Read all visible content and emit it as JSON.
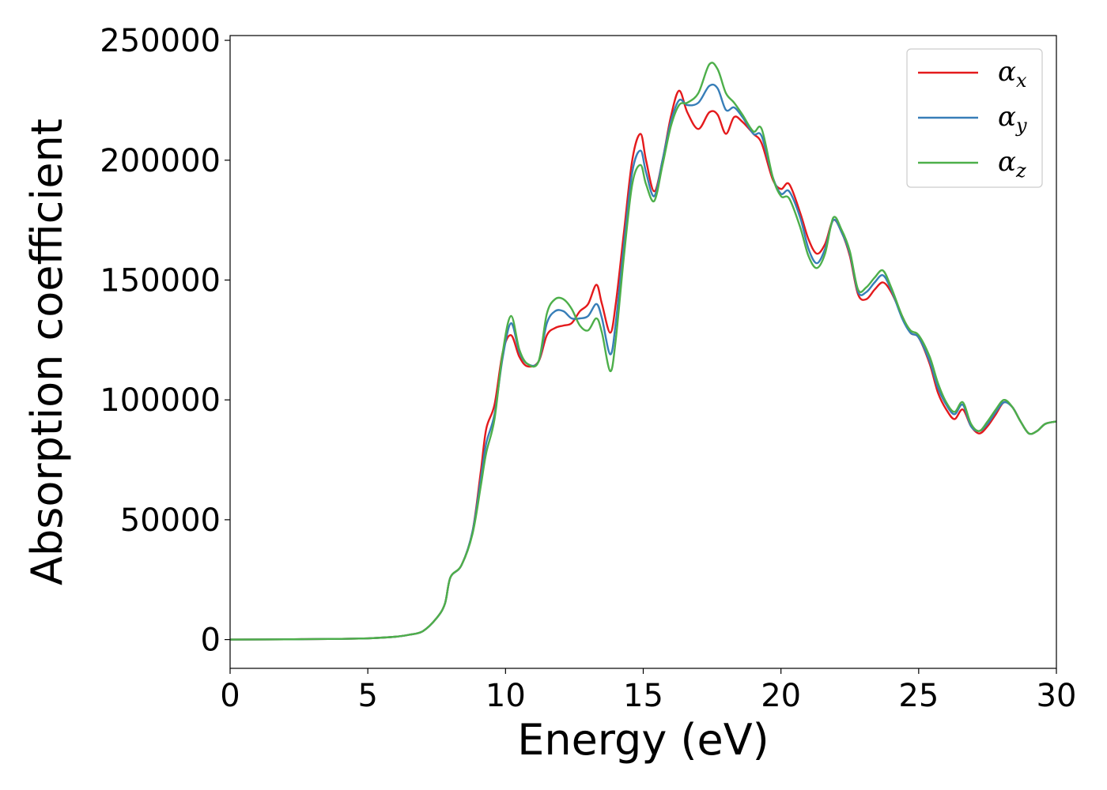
{
  "chart_data": {
    "type": "line",
    "title": "",
    "xlabel": "Energy (eV)",
    "ylabel": "Absorption coefficient",
    "xlim": [
      0,
      30
    ],
    "ylim": [
      -12000,
      252000
    ],
    "xticks": [
      0,
      5,
      10,
      15,
      20,
      25,
      30
    ],
    "yticks": [
      0,
      50000,
      100000,
      150000,
      200000,
      250000
    ],
    "grid": false,
    "legend_position": "top-right",
    "series": [
      {
        "name": "α",
        "subscript": "x",
        "color": "#e41a1c",
        "points": [
          [
            0,
            0
          ],
          [
            2,
            100
          ],
          [
            4,
            300
          ],
          [
            5,
            500
          ],
          [
            6,
            1200
          ],
          [
            6.5,
            2000
          ],
          [
            7,
            3500
          ],
          [
            7.5,
            9000
          ],
          [
            7.8,
            15000
          ],
          [
            8,
            26000
          ],
          [
            8.4,
            31000
          ],
          [
            8.8,
            45000
          ],
          [
            9.1,
            70000
          ],
          [
            9.3,
            88000
          ],
          [
            9.6,
            98000
          ],
          [
            9.9,
            120000
          ],
          [
            10.2,
            127000
          ],
          [
            10.5,
            118000
          ],
          [
            10.8,
            114000
          ],
          [
            11.2,
            116000
          ],
          [
            11.5,
            127000
          ],
          [
            11.8,
            130000
          ],
          [
            12.1,
            131000
          ],
          [
            12.4,
            132000
          ],
          [
            12.7,
            137000
          ],
          [
            13.0,
            140000
          ],
          [
            13.3,
            148000
          ],
          [
            13.5,
            140000
          ],
          [
            13.8,
            128000
          ],
          [
            14.0,
            140000
          ],
          [
            14.3,
            170000
          ],
          [
            14.6,
            200000
          ],
          [
            14.9,
            211000
          ],
          [
            15.1,
            200000
          ],
          [
            15.4,
            187000
          ],
          [
            15.7,
            200000
          ],
          [
            16.0,
            218000
          ],
          [
            16.3,
            229000
          ],
          [
            16.6,
            220000
          ],
          [
            17.0,
            213000
          ],
          [
            17.4,
            220000
          ],
          [
            17.7,
            219000
          ],
          [
            18.0,
            211000
          ],
          [
            18.3,
            218000
          ],
          [
            18.6,
            216000
          ],
          [
            19.0,
            211000
          ],
          [
            19.3,
            207000
          ],
          [
            19.7,
            192000
          ],
          [
            20.0,
            188000
          ],
          [
            20.3,
            190000
          ],
          [
            20.7,
            178000
          ],
          [
            21.0,
            167000
          ],
          [
            21.3,
            161000
          ],
          [
            21.6,
            165000
          ],
          [
            21.9,
            175000
          ],
          [
            22.2,
            170000
          ],
          [
            22.5,
            160000
          ],
          [
            22.8,
            144000
          ],
          [
            23.1,
            142000
          ],
          [
            23.4,
            146000
          ],
          [
            23.7,
            149000
          ],
          [
            24.0,
            145000
          ],
          [
            24.4,
            135000
          ],
          [
            24.7,
            128000
          ],
          [
            25.0,
            126000
          ],
          [
            25.4,
            115000
          ],
          [
            25.7,
            103000
          ],
          [
            26.0,
            96000
          ],
          [
            26.3,
            92000
          ],
          [
            26.6,
            96000
          ],
          [
            26.9,
            89000
          ],
          [
            27.2,
            86000
          ],
          [
            27.5,
            89000
          ],
          [
            27.8,
            94000
          ],
          [
            28.1,
            99000
          ],
          [
            28.4,
            97000
          ],
          [
            28.7,
            91000
          ],
          [
            29.0,
            86000
          ],
          [
            29.3,
            87000
          ],
          [
            29.6,
            90000
          ],
          [
            30,
            91000
          ]
        ]
      },
      {
        "name": "α",
        "subscript": "y",
        "color": "#377eb8",
        "points": [
          [
            0,
            0
          ],
          [
            2,
            100
          ],
          [
            4,
            300
          ],
          [
            5,
            500
          ],
          [
            6,
            1200
          ],
          [
            6.5,
            2000
          ],
          [
            7,
            3500
          ],
          [
            7.5,
            9000
          ],
          [
            7.8,
            15000
          ],
          [
            8,
            26000
          ],
          [
            8.4,
            31000
          ],
          [
            8.8,
            45000
          ],
          [
            9.1,
            67000
          ],
          [
            9.3,
            82000
          ],
          [
            9.6,
            94000
          ],
          [
            9.9,
            118000
          ],
          [
            10.2,
            132000
          ],
          [
            10.5,
            120000
          ],
          [
            10.8,
            115000
          ],
          [
            11.2,
            116000
          ],
          [
            11.5,
            132000
          ],
          [
            11.8,
            137000
          ],
          [
            12.1,
            137000
          ],
          [
            12.4,
            134000
          ],
          [
            12.7,
            134000
          ],
          [
            13.0,
            135000
          ],
          [
            13.3,
            140000
          ],
          [
            13.5,
            134000
          ],
          [
            13.8,
            119000
          ],
          [
            14.0,
            132000
          ],
          [
            14.3,
            165000
          ],
          [
            14.6,
            195000
          ],
          [
            14.9,
            204000
          ],
          [
            15.1,
            195000
          ],
          [
            15.4,
            185000
          ],
          [
            15.7,
            200000
          ],
          [
            16.0,
            216000
          ],
          [
            16.3,
            225000
          ],
          [
            16.6,
            223000
          ],
          [
            17.0,
            224000
          ],
          [
            17.4,
            231000
          ],
          [
            17.7,
            230000
          ],
          [
            18.0,
            221000
          ],
          [
            18.3,
            222000
          ],
          [
            18.6,
            218000
          ],
          [
            19.0,
            211000
          ],
          [
            19.3,
            210000
          ],
          [
            19.7,
            193000
          ],
          [
            20.0,
            186000
          ],
          [
            20.3,
            187000
          ],
          [
            20.7,
            176000
          ],
          [
            21.0,
            163000
          ],
          [
            21.3,
            157000
          ],
          [
            21.6,
            163000
          ],
          [
            21.9,
            175000
          ],
          [
            22.2,
            170000
          ],
          [
            22.5,
            161000
          ],
          [
            22.8,
            145000
          ],
          [
            23.1,
            145000
          ],
          [
            23.4,
            149000
          ],
          [
            23.7,
            152000
          ],
          [
            24.0,
            146000
          ],
          [
            24.4,
            134000
          ],
          [
            24.7,
            128000
          ],
          [
            25.0,
            126000
          ],
          [
            25.4,
            116000
          ],
          [
            25.7,
            105000
          ],
          [
            26.0,
            98000
          ],
          [
            26.3,
            94000
          ],
          [
            26.6,
            98000
          ],
          [
            26.9,
            89000
          ],
          [
            27.2,
            87000
          ],
          [
            27.5,
            90000
          ],
          [
            27.8,
            95000
          ],
          [
            28.1,
            99000
          ],
          [
            28.4,
            97000
          ],
          [
            28.7,
            91000
          ],
          [
            29.0,
            86000
          ],
          [
            29.3,
            87000
          ],
          [
            29.6,
            90000
          ],
          [
            30,
            91000
          ]
        ]
      },
      {
        "name": "α",
        "subscript": "z",
        "color": "#4daf4a",
        "points": [
          [
            0,
            0
          ],
          [
            2,
            100
          ],
          [
            4,
            300
          ],
          [
            5,
            500
          ],
          [
            6,
            1200
          ],
          [
            6.5,
            2000
          ],
          [
            7,
            3500
          ],
          [
            7.5,
            9000
          ],
          [
            7.8,
            15000
          ],
          [
            8,
            26000
          ],
          [
            8.4,
            31000
          ],
          [
            8.8,
            44000
          ],
          [
            9.1,
            64000
          ],
          [
            9.3,
            78000
          ],
          [
            9.6,
            92000
          ],
          [
            9.9,
            120000
          ],
          [
            10.2,
            135000
          ],
          [
            10.5,
            121000
          ],
          [
            10.8,
            115000
          ],
          [
            11.2,
            116000
          ],
          [
            11.5,
            136000
          ],
          [
            11.8,
            142000
          ],
          [
            12.1,
            142000
          ],
          [
            12.4,
            138000
          ],
          [
            12.7,
            131000
          ],
          [
            13.0,
            129000
          ],
          [
            13.3,
            134000
          ],
          [
            13.5,
            128000
          ],
          [
            13.8,
            112000
          ],
          [
            14.0,
            125000
          ],
          [
            14.3,
            160000
          ],
          [
            14.6,
            190000
          ],
          [
            14.9,
            198000
          ],
          [
            15.1,
            190000
          ],
          [
            15.4,
            183000
          ],
          [
            15.7,
            198000
          ],
          [
            16.0,
            214000
          ],
          [
            16.3,
            223000
          ],
          [
            16.6,
            224000
          ],
          [
            17.0,
            228000
          ],
          [
            17.4,
            240000
          ],
          [
            17.7,
            238000
          ],
          [
            18.0,
            228000
          ],
          [
            18.3,
            224000
          ],
          [
            18.6,
            219000
          ],
          [
            19.0,
            212000
          ],
          [
            19.3,
            213000
          ],
          [
            19.7,
            193000
          ],
          [
            20.0,
            185000
          ],
          [
            20.3,
            184000
          ],
          [
            20.7,
            172000
          ],
          [
            21.0,
            160000
          ],
          [
            21.3,
            155000
          ],
          [
            21.6,
            161000
          ],
          [
            21.9,
            176000
          ],
          [
            22.2,
            171000
          ],
          [
            22.5,
            162000
          ],
          [
            22.8,
            146000
          ],
          [
            23.1,
            147000
          ],
          [
            23.4,
            151000
          ],
          [
            23.7,
            154000
          ],
          [
            24.0,
            147000
          ],
          [
            24.4,
            135000
          ],
          [
            24.7,
            129000
          ],
          [
            25.0,
            127000
          ],
          [
            25.4,
            118000
          ],
          [
            25.7,
            107000
          ],
          [
            26.0,
            99000
          ],
          [
            26.3,
            95000
          ],
          [
            26.6,
            99000
          ],
          [
            26.9,
            90000
          ],
          [
            27.2,
            87000
          ],
          [
            27.5,
            91000
          ],
          [
            27.8,
            96000
          ],
          [
            28.1,
            100000
          ],
          [
            28.4,
            97000
          ],
          [
            28.7,
            91000
          ],
          [
            29.0,
            86000
          ],
          [
            29.3,
            87000
          ],
          [
            29.6,
            90000
          ],
          [
            30,
            91000
          ]
        ]
      }
    ]
  }
}
